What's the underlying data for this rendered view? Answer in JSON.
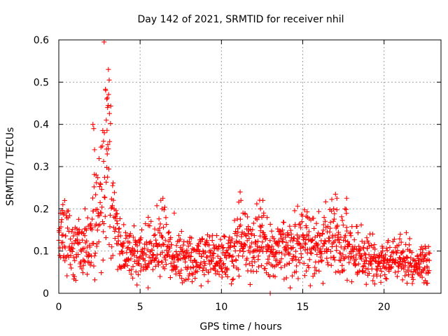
{
  "chart_data": {
    "type": "scatter",
    "title": "Day 142 of 2021, SRMTID for receiver nhil",
    "xlabel": "GPS time / hours",
    "ylabel": "SRMTID / TECUs",
    "xlim": [
      0,
      23.5
    ],
    "ylim": [
      0,
      0.6
    ],
    "xticks": [
      0,
      5,
      10,
      15,
      20
    ],
    "yticks": [
      0,
      0.1,
      0.2,
      0.3,
      0.4,
      0.5,
      0.6
    ],
    "xtick_labels": [
      "0",
      "5",
      "10",
      "15",
      "20"
    ],
    "ytick_labels": [
      "0",
      "0.1",
      "0.2",
      "0.3",
      "0.4",
      "0.5",
      "0.6"
    ],
    "grid": true,
    "marker": "plus",
    "color": "#ff0000",
    "series": [
      {
        "name": "SRMTID",
        "trend": [
          [
            0.0,
            0.13
          ],
          [
            0.5,
            0.12
          ],
          [
            1.0,
            0.1
          ],
          [
            1.5,
            0.1
          ],
          [
            2.0,
            0.11
          ],
          [
            2.2,
            0.15
          ],
          [
            2.5,
            0.2
          ],
          [
            2.8,
            0.27
          ],
          [
            3.0,
            0.3
          ],
          [
            3.3,
            0.2
          ],
          [
            3.6,
            0.12
          ],
          [
            4.0,
            0.09
          ],
          [
            5.0,
            0.085
          ],
          [
            6.0,
            0.11
          ],
          [
            6.5,
            0.12
          ],
          [
            7.0,
            0.09
          ],
          [
            8.0,
            0.075
          ],
          [
            9.0,
            0.09
          ],
          [
            10.0,
            0.07
          ],
          [
            11.0,
            0.12
          ],
          [
            12.0,
            0.11
          ],
          [
            12.5,
            0.13
          ],
          [
            13.0,
            0.09
          ],
          [
            14.0,
            0.1
          ],
          [
            15.0,
            0.11
          ],
          [
            16.0,
            0.11
          ],
          [
            17.0,
            0.13
          ],
          [
            18.0,
            0.1
          ],
          [
            19.0,
            0.075
          ],
          [
            20.0,
            0.07
          ],
          [
            21.0,
            0.08
          ],
          [
            22.0,
            0.06
          ],
          [
            22.8,
            0.07
          ]
        ],
        "peaks": [
          [
            3.05,
            0.53
          ],
          [
            3.1,
            0.505
          ],
          [
            2.95,
            0.46
          ],
          [
            3.0,
            0.44
          ],
          [
            2.92,
            0.41
          ],
          [
            2.1,
            0.4
          ],
          [
            2.15,
            0.39
          ],
          [
            2.8,
            0.38
          ],
          [
            2.75,
            0.36
          ],
          [
            2.2,
            0.34
          ],
          [
            2.98,
            0.33
          ],
          [
            2.3,
            0.28
          ],
          [
            2.55,
            0.26
          ],
          [
            0.25,
            0.21
          ],
          [
            0.2,
            0.19
          ],
          [
            6.4,
            0.225
          ],
          [
            6.35,
            0.2
          ],
          [
            11.15,
            0.24
          ],
          [
            11.2,
            0.22
          ],
          [
            12.55,
            0.22
          ],
          [
            12.4,
            0.2
          ],
          [
            12.6,
            0.19
          ],
          [
            17.1,
            0.225
          ],
          [
            17.7,
            0.225
          ],
          [
            17.6,
            0.2
          ],
          [
            16.9,
            0.2
          ],
          [
            15.3,
            0.18
          ],
          [
            15.2,
            0.16
          ],
          [
            7.1,
            0.19
          ],
          [
            5.5,
            0.18
          ],
          [
            21.0,
            0.14
          ],
          [
            22.3,
            0.11
          ],
          [
            13.0,
            0.0
          ]
        ],
        "n_points": 1400
      }
    ]
  }
}
